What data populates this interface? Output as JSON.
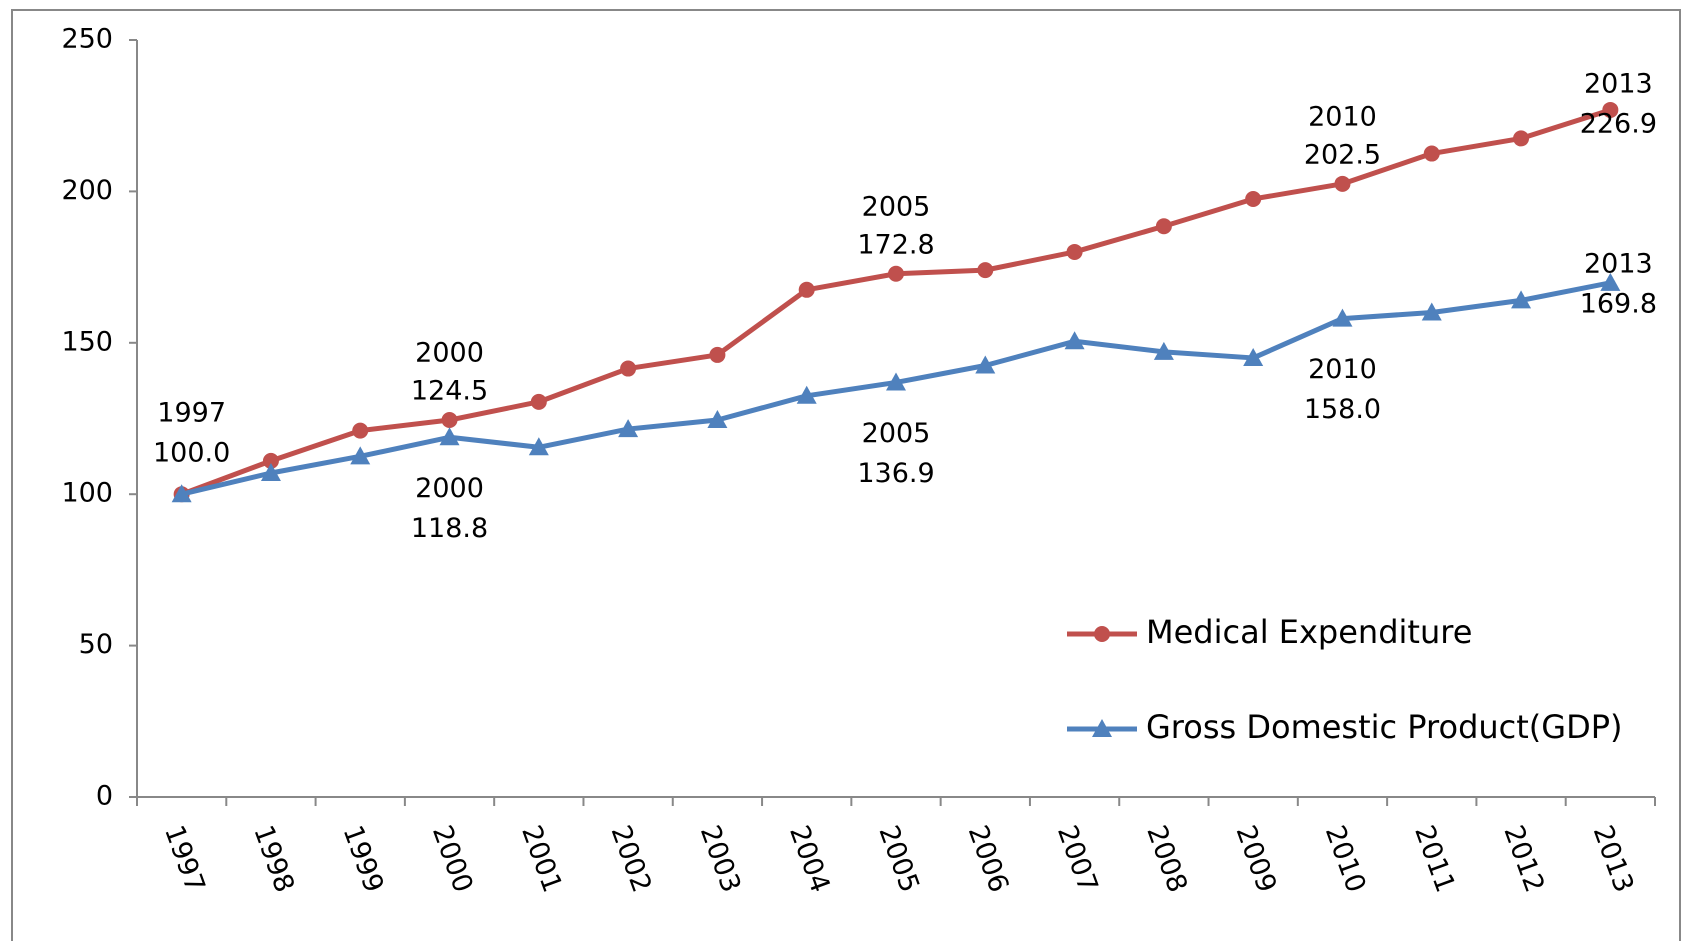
{
  "chart_data": {
    "type": "line",
    "categories": [
      "1997",
      "1998",
      "1999",
      "2000",
      "2001",
      "2002",
      "2003",
      "2004",
      "2005",
      "2006",
      "2007",
      "2008",
      "2009",
      "2010",
      "2011",
      "2012",
      "2013"
    ],
    "series": [
      {
        "name": "Medical Expenditure",
        "color": "#c0504d",
        "marker": "circle",
        "values": [
          100.0,
          111,
          121,
          124.5,
          130.5,
          141.5,
          146,
          167.5,
          172.8,
          174,
          180,
          188.5,
          197.5,
          202.5,
          212.5,
          217.5,
          226.9
        ],
        "value_labels": [
          "100.0",
          null,
          null,
          "124.5",
          null,
          null,
          null,
          null,
          "172.8",
          null,
          null,
          null,
          null,
          "202.5",
          null,
          null,
          "226.9"
        ]
      },
      {
        "name": "Gross Domestic Product(GDP)",
        "color": "#4f81bd",
        "marker": "triangle",
        "values": [
          100.0,
          107,
          112.5,
          118.8,
          115.5,
          121.5,
          124.5,
          132.5,
          136.9,
          142.5,
          150.5,
          147,
          145,
          158.0,
          160,
          164,
          169.8
        ],
        "value_labels": [
          null,
          null,
          null,
          "118.8",
          null,
          null,
          null,
          null,
          "136.9",
          null,
          null,
          null,
          null,
          "158.0",
          null,
          null,
          "169.8"
        ]
      }
    ],
    "ylim": [
      0,
      250
    ],
    "yticks": [
      0,
      50,
      100,
      150,
      200,
      250
    ],
    "grid": false
  }
}
